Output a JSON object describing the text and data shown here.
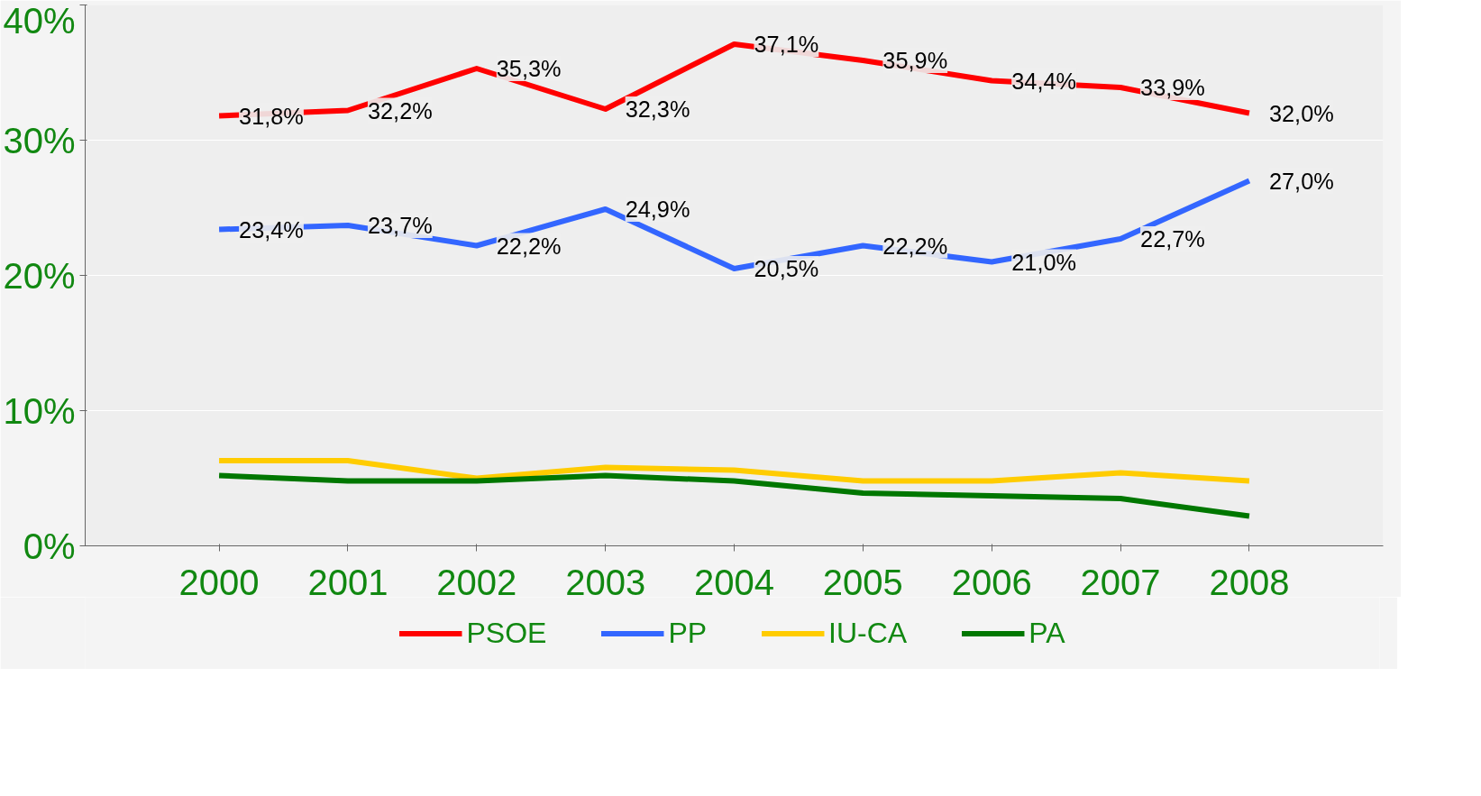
{
  "chart_data": {
    "type": "line",
    "categories": [
      "2000",
      "2001",
      "2002",
      "2003",
      "2004",
      "2005",
      "2006",
      "2007",
      "2008"
    ],
    "series": [
      {
        "name": "PSOE",
        "color": "#ff0000",
        "values": [
          31.8,
          32.2,
          35.3,
          32.3,
          37.1,
          35.9,
          34.4,
          33.9,
          32.0
        ],
        "value_labels": [
          "31,8%",
          "32,2%",
          "35,3%",
          "32,3%",
          "37,1%",
          "35,9%",
          "34,4%",
          "33,9%",
          "32,0%"
        ]
      },
      {
        "name": "PP",
        "color": "#3366ff",
        "values": [
          23.4,
          23.7,
          22.2,
          24.9,
          20.5,
          22.2,
          21.0,
          22.7,
          27.0
        ],
        "value_labels": [
          "23,4%",
          "23,7%",
          "22,2%",
          "24,9%",
          "20,5%",
          "22,2%",
          "21,0%",
          "22,7%",
          "27,0%"
        ]
      },
      {
        "name": "IU-CA",
        "color": "#ffcc00",
        "values": [
          6.3,
          6.3,
          5.0,
          5.8,
          5.6,
          4.8,
          4.8,
          5.4,
          4.8
        ]
      },
      {
        "name": "PA",
        "color": "#007700",
        "values": [
          5.2,
          4.8,
          4.8,
          5.2,
          4.8,
          3.9,
          3.7,
          3.5,
          2.2
        ]
      }
    ],
    "ylim": [
      0,
      40
    ],
    "yticks": [
      {
        "value": 0,
        "label": "0%"
      },
      {
        "value": 10,
        "label": "10%"
      },
      {
        "value": 20,
        "label": "20%"
      },
      {
        "value": 30,
        "label": "30%"
      },
      {
        "value": 40,
        "label": "40%"
      }
    ],
    "grid": "y",
    "legend": "bottom",
    "marker": "none",
    "line_style": "solid"
  }
}
